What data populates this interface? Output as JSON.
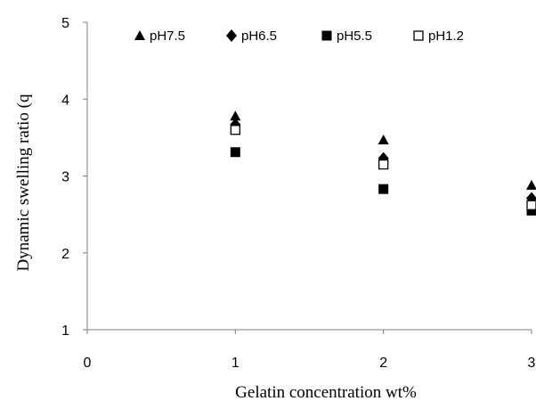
{
  "chart_data": {
    "type": "scatter",
    "xlabel": "Gelatin concentration wt%",
    "ylabel": "Dynamic swelling ratio (q",
    "xlim": [
      0,
      3
    ],
    "ylim": [
      1,
      5
    ],
    "x_ticks": [
      "0",
      "1",
      "2",
      "3"
    ],
    "y_ticks": [
      "1",
      "2",
      "3",
      "4",
      "5"
    ],
    "grid": false,
    "legend_position": "top",
    "series": [
      {
        "name": "pH7.5",
        "marker": "triangle",
        "color": "#000000",
        "x": [
          1,
          2,
          3
        ],
        "y": [
          3.78,
          3.47,
          2.88
        ]
      },
      {
        "name": "pH6.5",
        "marker": "diamond",
        "color": "#000000",
        "x": [
          1,
          2,
          3
        ],
        "y": [
          3.67,
          3.23,
          2.71
        ]
      },
      {
        "name": "pH5.5",
        "marker": "square",
        "color": "#000000",
        "x": [
          1,
          2,
          3
        ],
        "y": [
          3.31,
          2.83,
          2.55
        ]
      },
      {
        "name": "pH1.2",
        "marker": "open-square",
        "color": "#000000",
        "x": [
          1,
          2,
          3
        ],
        "y": [
          3.6,
          3.15,
          2.62
        ]
      }
    ]
  }
}
